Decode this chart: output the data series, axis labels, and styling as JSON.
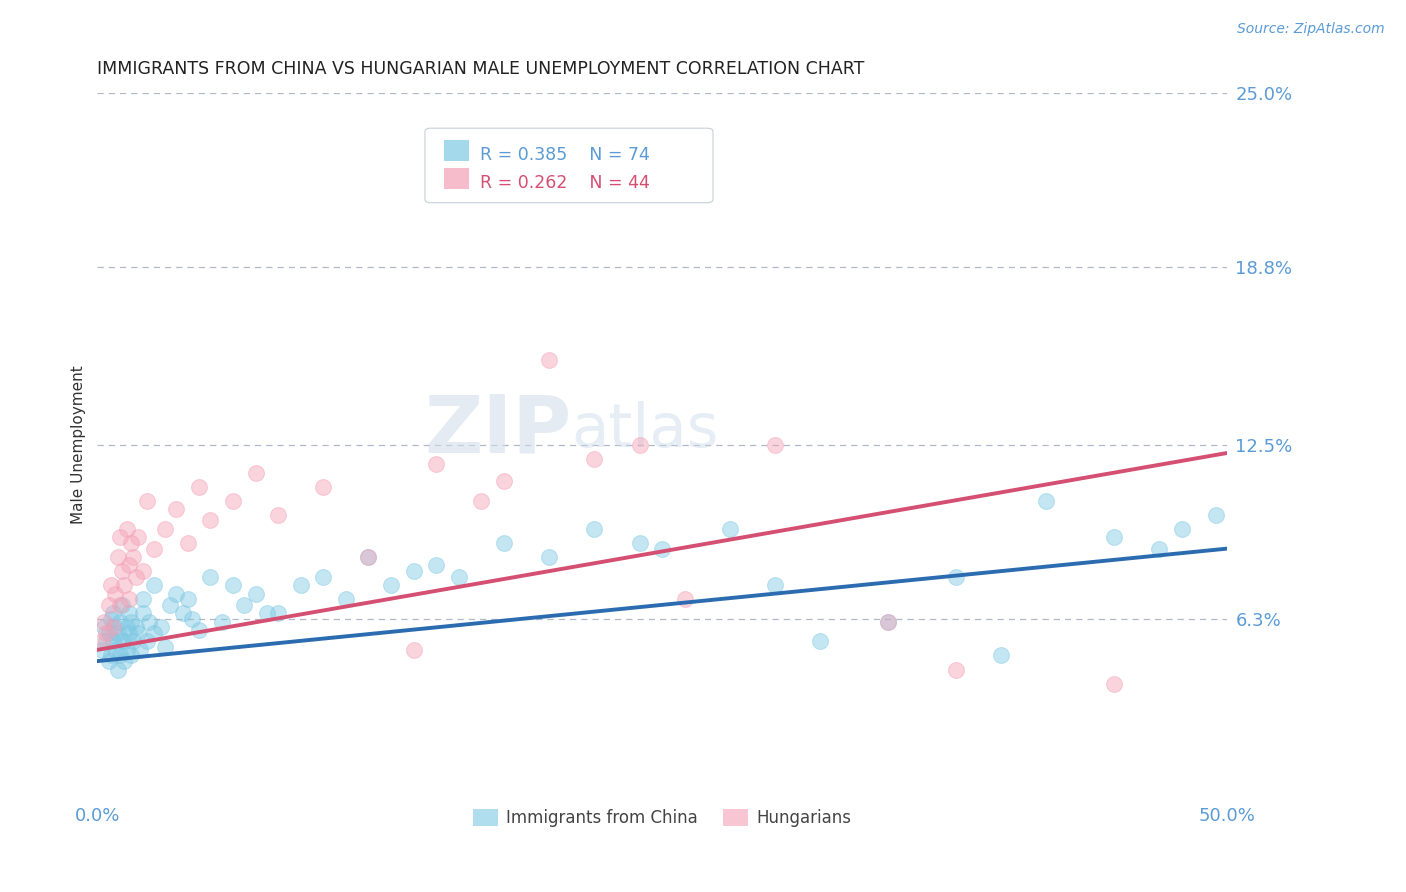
{
  "title": "IMMIGRANTS FROM CHINA VS HUNGARIAN MALE UNEMPLOYMENT CORRELATION CHART",
  "source": "Source: ZipAtlas.com",
  "ylabel": "Male Unemployment",
  "xmin": 0.0,
  "xmax": 50.0,
  "ymin": 0.0,
  "ymax": 25.0,
  "yticks": [
    6.3,
    12.5,
    18.8,
    25.0
  ],
  "blue_R": "R = 0.385",
  "blue_N": "N = 74",
  "pink_R": "R = 0.262",
  "pink_N": "N = 44",
  "blue_color": "#7ec8e3",
  "pink_color": "#f4a0b5",
  "blue_line_color": "#2b6cb0",
  "pink_line_color": "#d44f72",
  "title_color": "#222222",
  "axis_label_color": "#5b9bd5",
  "grid_color": "#b0b8c8",
  "blue_line_x": [
    0.0,
    50.0
  ],
  "blue_line_y": [
    4.8,
    8.8
  ],
  "pink_line_x": [
    0.0,
    50.0
  ],
  "pink_line_y": [
    5.2,
    12.2
  ],
  "watermark_zip": "ZIP",
  "watermark_atlas": "atlas",
  "background_color": "#ffffff",
  "blue_scatter": [
    [
      0.2,
      5.2
    ],
    [
      0.3,
      6.0
    ],
    [
      0.4,
      5.5
    ],
    [
      0.5,
      4.8
    ],
    [
      0.5,
      5.8
    ],
    [
      0.6,
      6.3
    ],
    [
      0.6,
      5.0
    ],
    [
      0.7,
      5.5
    ],
    [
      0.7,
      6.5
    ],
    [
      0.8,
      5.2
    ],
    [
      0.8,
      6.0
    ],
    [
      0.9,
      5.8
    ],
    [
      0.9,
      4.5
    ],
    [
      1.0,
      6.2
    ],
    [
      1.0,
      5.0
    ],
    [
      1.1,
      5.5
    ],
    [
      1.1,
      6.8
    ],
    [
      1.2,
      4.8
    ],
    [
      1.2,
      5.5
    ],
    [
      1.3,
      6.0
    ],
    [
      1.3,
      5.2
    ],
    [
      1.4,
      6.5
    ],
    [
      1.4,
      5.8
    ],
    [
      1.5,
      5.0
    ],
    [
      1.5,
      6.2
    ],
    [
      1.6,
      5.5
    ],
    [
      1.7,
      6.0
    ],
    [
      1.8,
      5.8
    ],
    [
      1.9,
      5.2
    ],
    [
      2.0,
      6.5
    ],
    [
      2.0,
      7.0
    ],
    [
      2.2,
      5.5
    ],
    [
      2.3,
      6.2
    ],
    [
      2.5,
      5.8
    ],
    [
      2.5,
      7.5
    ],
    [
      2.8,
      6.0
    ],
    [
      3.0,
      5.3
    ],
    [
      3.2,
      6.8
    ],
    [
      3.5,
      7.2
    ],
    [
      3.8,
      6.5
    ],
    [
      4.0,
      7.0
    ],
    [
      4.2,
      6.3
    ],
    [
      4.5,
      5.9
    ],
    [
      5.0,
      7.8
    ],
    [
      5.5,
      6.2
    ],
    [
      6.0,
      7.5
    ],
    [
      6.5,
      6.8
    ],
    [
      7.0,
      7.2
    ],
    [
      7.5,
      6.5
    ],
    [
      8.0,
      6.5
    ],
    [
      9.0,
      7.5
    ],
    [
      10.0,
      7.8
    ],
    [
      11.0,
      7.0
    ],
    [
      12.0,
      8.5
    ],
    [
      13.0,
      7.5
    ],
    [
      14.0,
      8.0
    ],
    [
      15.0,
      8.2
    ],
    [
      16.0,
      7.8
    ],
    [
      18.0,
      9.0
    ],
    [
      20.0,
      8.5
    ],
    [
      22.0,
      9.5
    ],
    [
      24.0,
      9.0
    ],
    [
      25.0,
      8.8
    ],
    [
      28.0,
      9.5
    ],
    [
      30.0,
      7.5
    ],
    [
      32.0,
      5.5
    ],
    [
      35.0,
      6.2
    ],
    [
      38.0,
      7.8
    ],
    [
      40.0,
      5.0
    ],
    [
      42.0,
      10.5
    ],
    [
      45.0,
      9.2
    ],
    [
      47.0,
      8.8
    ],
    [
      48.0,
      9.5
    ],
    [
      49.5,
      10.0
    ]
  ],
  "pink_scatter": [
    [
      0.2,
      5.5
    ],
    [
      0.3,
      6.2
    ],
    [
      0.4,
      5.8
    ],
    [
      0.5,
      6.8
    ],
    [
      0.6,
      7.5
    ],
    [
      0.7,
      6.0
    ],
    [
      0.8,
      7.2
    ],
    [
      0.9,
      8.5
    ],
    [
      1.0,
      6.8
    ],
    [
      1.0,
      9.2
    ],
    [
      1.1,
      8.0
    ],
    [
      1.2,
      7.5
    ],
    [
      1.3,
      9.5
    ],
    [
      1.4,
      8.2
    ],
    [
      1.4,
      7.0
    ],
    [
      1.5,
      9.0
    ],
    [
      1.6,
      8.5
    ],
    [
      1.7,
      7.8
    ],
    [
      1.8,
      9.2
    ],
    [
      2.0,
      8.0
    ],
    [
      2.2,
      10.5
    ],
    [
      2.5,
      8.8
    ],
    [
      3.0,
      9.5
    ],
    [
      3.5,
      10.2
    ],
    [
      4.0,
      9.0
    ],
    [
      4.5,
      11.0
    ],
    [
      5.0,
      9.8
    ],
    [
      6.0,
      10.5
    ],
    [
      7.0,
      11.5
    ],
    [
      8.0,
      10.0
    ],
    [
      10.0,
      11.0
    ],
    [
      12.0,
      8.5
    ],
    [
      14.0,
      5.2
    ],
    [
      15.0,
      11.8
    ],
    [
      17.0,
      10.5
    ],
    [
      18.0,
      11.2
    ],
    [
      20.0,
      15.5
    ],
    [
      22.0,
      12.0
    ],
    [
      24.0,
      12.5
    ],
    [
      26.0,
      7.0
    ],
    [
      30.0,
      12.5
    ],
    [
      35.0,
      6.2
    ],
    [
      38.0,
      4.5
    ],
    [
      45.0,
      4.0
    ]
  ]
}
